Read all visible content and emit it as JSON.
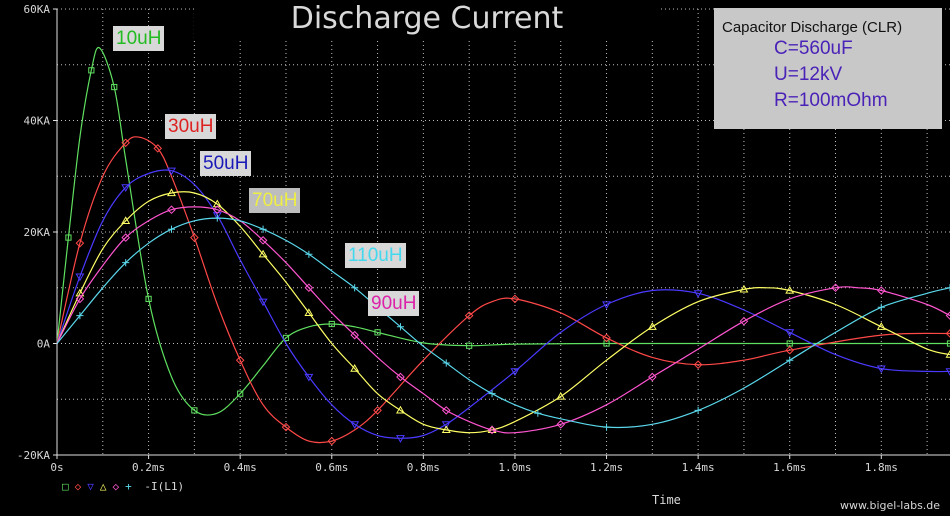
{
  "chart_data": {
    "type": "line",
    "title": "Discharge Current",
    "xlabel": "Time",
    "legend_text": "-I(L1)",
    "xlim": [
      0,
      1.95
    ],
    "ylim": [
      -20000,
      60000
    ],
    "x_unit": "ms",
    "x_ticks": [
      {
        "v": 0,
        "label": "0s"
      },
      {
        "v": 0.2,
        "label": "0.2ms"
      },
      {
        "v": 0.4,
        "label": "0.4ms"
      },
      {
        "v": 0.6,
        "label": "0.6ms"
      },
      {
        "v": 0.8,
        "label": "0.8ms"
      },
      {
        "v": 1.0,
        "label": "1.0ms"
      },
      {
        "v": 1.2,
        "label": "1.2ms"
      },
      {
        "v": 1.4,
        "label": "1.4ms"
      },
      {
        "v": 1.6,
        "label": "1.6ms"
      },
      {
        "v": 1.8,
        "label": "1.8ms"
      }
    ],
    "y_ticks": [
      {
        "v": -20000,
        "label": "-20KA"
      },
      {
        "v": 0,
        "label": "0A"
      },
      {
        "v": 20000,
        "label": "20KA"
      },
      {
        "v": 40000,
        "label": "40KA"
      },
      {
        "v": 60000,
        "label": "60KA"
      }
    ],
    "grid": true,
    "series": [
      {
        "name": "10uH",
        "color": "#60e060",
        "marker": "square",
        "x": [
          0,
          0.025,
          0.05,
          0.075,
          0.093,
          0.125,
          0.15,
          0.2,
          0.25,
          0.3,
          0.35,
          0.4,
          0.45,
          0.5,
          0.55,
          0.6,
          0.65,
          0.7,
          0.8,
          0.9,
          1.0,
          1.2,
          1.4,
          1.6,
          1.8,
          1.95
        ],
        "y": [
          0,
          19000,
          37000,
          49000,
          53000,
          46000,
          33000,
          8000,
          -6000,
          -12000,
          -12500,
          -9000,
          -4000,
          1000,
          3000,
          3500,
          3000,
          2000,
          100,
          -400,
          -100,
          0,
          0,
          0,
          0,
          0
        ]
      },
      {
        "name": "30uH",
        "color": "#ff4848",
        "marker": "diamond",
        "x": [
          0,
          0.05,
          0.1,
          0.15,
          0.18,
          0.22,
          0.25,
          0.3,
          0.35,
          0.4,
          0.45,
          0.5,
          0.55,
          0.6,
          0.65,
          0.7,
          0.8,
          0.9,
          0.95,
          1.0,
          1.1,
          1.2,
          1.3,
          1.4,
          1.5,
          1.6,
          1.8,
          1.95
        ],
        "y": [
          0,
          18000,
          30000,
          36000,
          37000,
          35000,
          30000,
          19000,
          7000,
          -3000,
          -11000,
          -15000,
          -17500,
          -17500,
          -15500,
          -12000,
          -3000,
          5000,
          7500,
          8000,
          5500,
          1000,
          -2500,
          -3800,
          -3000,
          -1200,
          1500,
          1800
        ]
      },
      {
        "name": "50uH",
        "color": "#4a3aff",
        "marker": "triangle-down",
        "x": [
          0,
          0.05,
          0.1,
          0.15,
          0.2,
          0.25,
          0.3,
          0.35,
          0.4,
          0.45,
          0.5,
          0.55,
          0.6,
          0.65,
          0.7,
          0.75,
          0.8,
          0.85,
          0.9,
          1.0,
          1.1,
          1.2,
          1.3,
          1.4,
          1.5,
          1.6,
          1.7,
          1.8,
          1.9,
          1.95
        ],
        "y": [
          0,
          12000,
          22000,
          28000,
          30500,
          31000,
          28500,
          23000,
          15000,
          7500,
          0,
          -6000,
          -11000,
          -14500,
          -16500,
          -17000,
          -16500,
          -14500,
          -11500,
          -5000,
          2000,
          7000,
          9500,
          9000,
          6000,
          2000,
          -2000,
          -4500,
          -5000,
          -5000
        ]
      },
      {
        "name": "70uH",
        "color": "#ffff66",
        "marker": "triangle",
        "x": [
          0,
          0.05,
          0.1,
          0.15,
          0.2,
          0.25,
          0.3,
          0.35,
          0.4,
          0.45,
          0.5,
          0.55,
          0.6,
          0.65,
          0.7,
          0.75,
          0.8,
          0.85,
          0.9,
          0.95,
          1.0,
          1.1,
          1.2,
          1.3,
          1.4,
          1.5,
          1.55,
          1.6,
          1.7,
          1.8,
          1.9,
          1.95
        ],
        "y": [
          0,
          9000,
          17000,
          22000,
          25500,
          27000,
          27000,
          25000,
          21000,
          16000,
          11000,
          5500,
          0,
          -4500,
          -9000,
          -12000,
          -14500,
          -15500,
          -16000,
          -15500,
          -14000,
          -9500,
          -3000,
          3000,
          7500,
          9700,
          10000,
          9500,
          7000,
          3000,
          -1000,
          -2000
        ]
      },
      {
        "name": "90uH",
        "color": "#ff55d0",
        "marker": "diamond",
        "x": [
          0,
          0.05,
          0.1,
          0.15,
          0.2,
          0.25,
          0.3,
          0.35,
          0.4,
          0.45,
          0.5,
          0.55,
          0.6,
          0.65,
          0.7,
          0.75,
          0.8,
          0.85,
          0.9,
          0.95,
          1.0,
          1.1,
          1.2,
          1.3,
          1.4,
          1.5,
          1.6,
          1.7,
          1.75,
          1.8,
          1.9,
          1.95
        ],
        "y": [
          0,
          8000,
          14000,
          19000,
          22000,
          24000,
          24500,
          24000,
          22000,
          18500,
          14500,
          10000,
          5500,
          1500,
          -2500,
          -6000,
          -9000,
          -12000,
          -14000,
          -15500,
          -16000,
          -14500,
          -11000,
          -6000,
          -1000,
          4000,
          8000,
          10000,
          10000,
          9500,
          7000,
          5000
        ]
      },
      {
        "name": "110uH",
        "color": "#5ad8ec",
        "marker": "plus",
        "x": [
          0,
          0.05,
          0.1,
          0.15,
          0.2,
          0.25,
          0.3,
          0.35,
          0.4,
          0.45,
          0.5,
          0.55,
          0.6,
          0.65,
          0.7,
          0.75,
          0.8,
          0.85,
          0.9,
          0.95,
          1.0,
          1.05,
          1.1,
          1.2,
          1.3,
          1.4,
          1.5,
          1.6,
          1.7,
          1.8,
          1.9,
          1.95
        ],
        "y": [
          0,
          5000,
          10000,
          14500,
          18000,
          20500,
          22000,
          22500,
          22000,
          20500,
          18500,
          16000,
          13000,
          10000,
          6500,
          3000,
          -500,
          -3500,
          -6500,
          -9000,
          -11000,
          -12500,
          -13500,
          -15000,
          -14500,
          -12000,
          -8000,
          -3000,
          2000,
          6500,
          9000,
          10000
        ]
      }
    ]
  },
  "info": {
    "title": "Capacitor Discharge (CLR)",
    "lines": [
      "C=560uF",
      "U=12kV",
      "R=100mOhm"
    ]
  },
  "labels": [
    {
      "text": "10uH",
      "color": "#22bb22",
      "bg": "#d8d8d8"
    },
    {
      "text": "30uH",
      "color": "#dd2222",
      "bg": "#d8d8d8"
    },
    {
      "text": "50uH",
      "color": "#1a1ab8",
      "bg": "#d8d8d8"
    },
    {
      "text": "70uH",
      "color": "#eeee44",
      "bg": "#bdbdbd"
    },
    {
      "text": "90uH",
      "color": "#dd22aa",
      "bg": "#d8d8d8"
    },
    {
      "text": "110uH",
      "color": "#44d8ee",
      "bg": "#d8d8d8"
    }
  ],
  "credit": "www.bigel-labs.de"
}
